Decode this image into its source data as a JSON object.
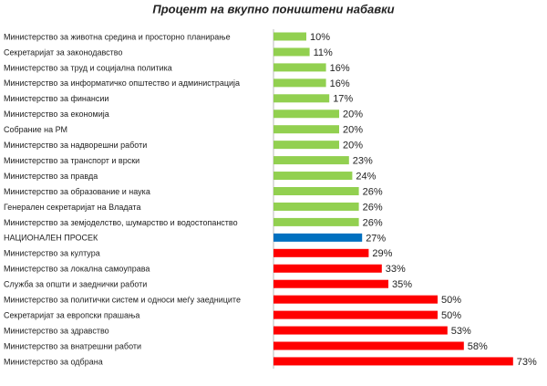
{
  "chart_data": {
    "type": "barh",
    "title": "Процент на вкупно поништени набавки",
    "categories": [
      "Министерство за животна средина и просторно планирање",
      "Секретаријат за законодавство",
      "Министерство за труд и социјална политика",
      "Министерство за информатичко општество и администрација",
      "Министерство за финансии",
      "Министерство за економија",
      "Собрание на РМ",
      "Министерство за надворешни работи",
      "Министерство за транспорт и врски",
      "Министерство за правда",
      "Министерство за образование и наука",
      "Генерален секретаријат на Владата",
      "Министерство за земјоделство, шумарство и водостопанство",
      "НАЦИОНАЛЕН ПРОСЕК",
      "Министерство за култура",
      "Министерство за локална самоуправа",
      "Служба за општи и заеднички работи",
      "Министерство за политички систем и односи меѓу заедниците",
      "Секретаријат за европски прашања",
      "Министерство за здравство",
      "Министерство за внатрешни работи",
      "Министерство за одбрана"
    ],
    "values": [
      10,
      11,
      16,
      16,
      17,
      20,
      20,
      20,
      23,
      24,
      26,
      26,
      26,
      27,
      29,
      33,
      35,
      50,
      50,
      53,
      58,
      73
    ],
    "value_labels": [
      "10%",
      "11%",
      "16%",
      "16%",
      "17%",
      "20%",
      "20%",
      "20%",
      "23%",
      "24%",
      "26%",
      "26%",
      "26%",
      "27%",
      "29%",
      "33%",
      "35%",
      "50%",
      "50%",
      "53%",
      "58%",
      "73%"
    ],
    "colors": [
      "#92d050",
      "#92d050",
      "#92d050",
      "#92d050",
      "#92d050",
      "#92d050",
      "#92d050",
      "#92d050",
      "#92d050",
      "#92d050",
      "#92d050",
      "#92d050",
      "#92d050",
      "#0070c0",
      "#ff0000",
      "#ff0000",
      "#ff0000",
      "#ff0000",
      "#ff0000",
      "#ff0000",
      "#ff0000",
      "#ff0000"
    ]
  }
}
